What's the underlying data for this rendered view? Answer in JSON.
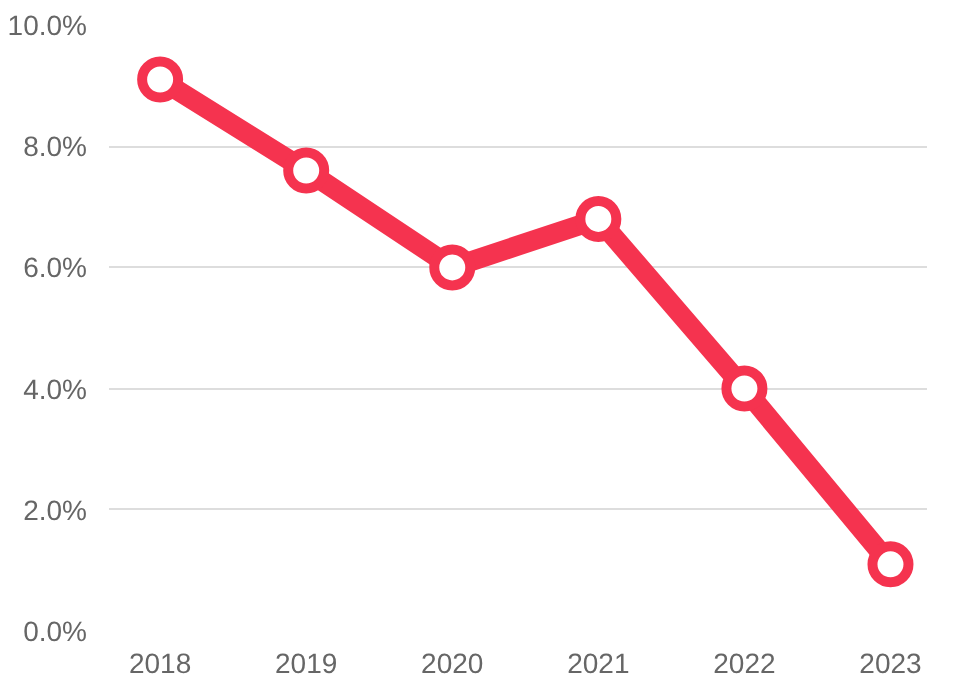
{
  "chart_data": {
    "type": "line",
    "categories": [
      "2018",
      "2019",
      "2020",
      "2021",
      "2022",
      "2023"
    ],
    "series": [
      {
        "color": "#f5334f",
        "values": [
          9.1,
          7.6,
          6.0,
          6.8,
          4.0,
          1.1
        ]
      }
    ],
    "ylim": [
      0,
      10
    ],
    "yticks": [
      {
        "value": 0,
        "label": "0.0%"
      },
      {
        "value": 2,
        "label": "2.0%"
      },
      {
        "value": 4,
        "label": "4.0%"
      },
      {
        "value": 6,
        "label": "6.0%"
      },
      {
        "value": 8,
        "label": "8.0%"
      },
      {
        "value": 10,
        "label": "10.0%"
      }
    ],
    "grid": "y",
    "marker": "circle",
    "line_style": "solid"
  }
}
